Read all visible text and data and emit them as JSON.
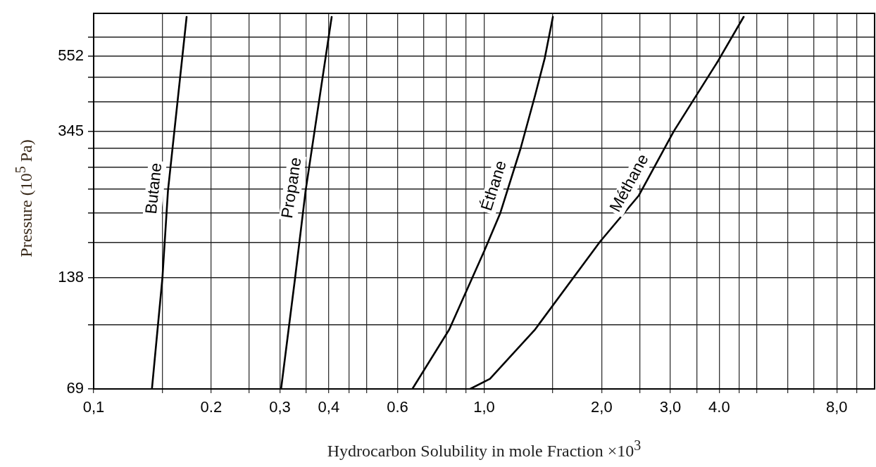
{
  "chart_data": {
    "type": "line",
    "xlabel": "Hydrocarbon Solubility in mole Fraction ×10$^{3}$",
    "ylabel": "Pressure (10$^{5}$ Pa)",
    "log": "xy",
    "grid": true,
    "legend": false,
    "line_style": "solid",
    "xlim": [
      0.1,
      10
    ],
    "ylim": [
      69,
      720
    ],
    "xticks": [
      {
        "value": 0.1,
        "label": "0,1"
      },
      {
        "value": 0.15,
        "label": null
      },
      {
        "value": 0.2,
        "label": "0.2"
      },
      {
        "value": 0.25,
        "label": null
      },
      {
        "value": 0.3,
        "label": "0,3"
      },
      {
        "value": 0.35,
        "label": null
      },
      {
        "value": 0.4,
        "label": "0,4"
      },
      {
        "value": 0.45,
        "label": null
      },
      {
        "value": 0.5,
        "label": null
      },
      {
        "value": 0.6,
        "label": "0.6"
      },
      {
        "value": 0.7,
        "label": null
      },
      {
        "value": 0.8,
        "label": null
      },
      {
        "value": 0.9,
        "label": null
      },
      {
        "value": 1.0,
        "label": "1,0"
      },
      {
        "value": 1.5,
        "label": null
      },
      {
        "value": 2.0,
        "label": "2,0"
      },
      {
        "value": 2.5,
        "label": null
      },
      {
        "value": 3.0,
        "label": "3,0"
      },
      {
        "value": 3.5,
        "label": null
      },
      {
        "value": 4.0,
        "label": "4.0"
      },
      {
        "value": 4.5,
        "label": null
      },
      {
        "value": 5,
        "label": null
      },
      {
        "value": 6,
        "label": null
      },
      {
        "value": 7,
        "label": null
      },
      {
        "value": 8,
        "label": "8,0"
      },
      {
        "value": 9,
        "label": null
      }
    ],
    "yticks": [
      69,
      {
        "value": 103,
        "label": null
      },
      138,
      {
        "value": 172,
        "label": null
      },
      {
        "value": 207,
        "label": null
      },
      {
        "value": 241,
        "label": null
      },
      {
        "value": 276,
        "label": null
      },
      {
        "value": 310,
        "label": null
      },
      345,
      {
        "value": 414,
        "label": null
      },
      {
        "value": 483,
        "label": null
      },
      552,
      {
        "value": 621,
        "label": null
      }
    ],
    "series": [
      {
        "name": "Butane",
        "color": "#000000",
        "x": [
          0.141,
          0.15,
          0.155,
          0.173
        ],
        "values": [
          69,
          138,
          238,
          705
        ]
      },
      {
        "name": "Propane",
        "color": "#000000",
        "x": [
          0.302,
          0.328,
          0.349,
          0.407
        ],
        "values": [
          69,
          138,
          238,
          705
        ]
      },
      {
        "name": "Éthane",
        "color": "#000000",
        "x": [
          0.655,
          0.814,
          1.0,
          1.1,
          1.24,
          1.35,
          1.43,
          1.5
        ],
        "values": [
          69,
          100,
          163,
          207,
          310,
          431,
          545,
          705
        ]
      },
      {
        "name": "Méthane",
        "color": "#000000",
        "x": [
          0.921,
          1.035,
          1.35,
          1.98,
          2.49,
          3.06,
          3.98,
          4.62
        ],
        "values": [
          69,
          73.5,
          100,
          173,
          231,
          345,
          537,
          705
        ]
      }
    ]
  }
}
